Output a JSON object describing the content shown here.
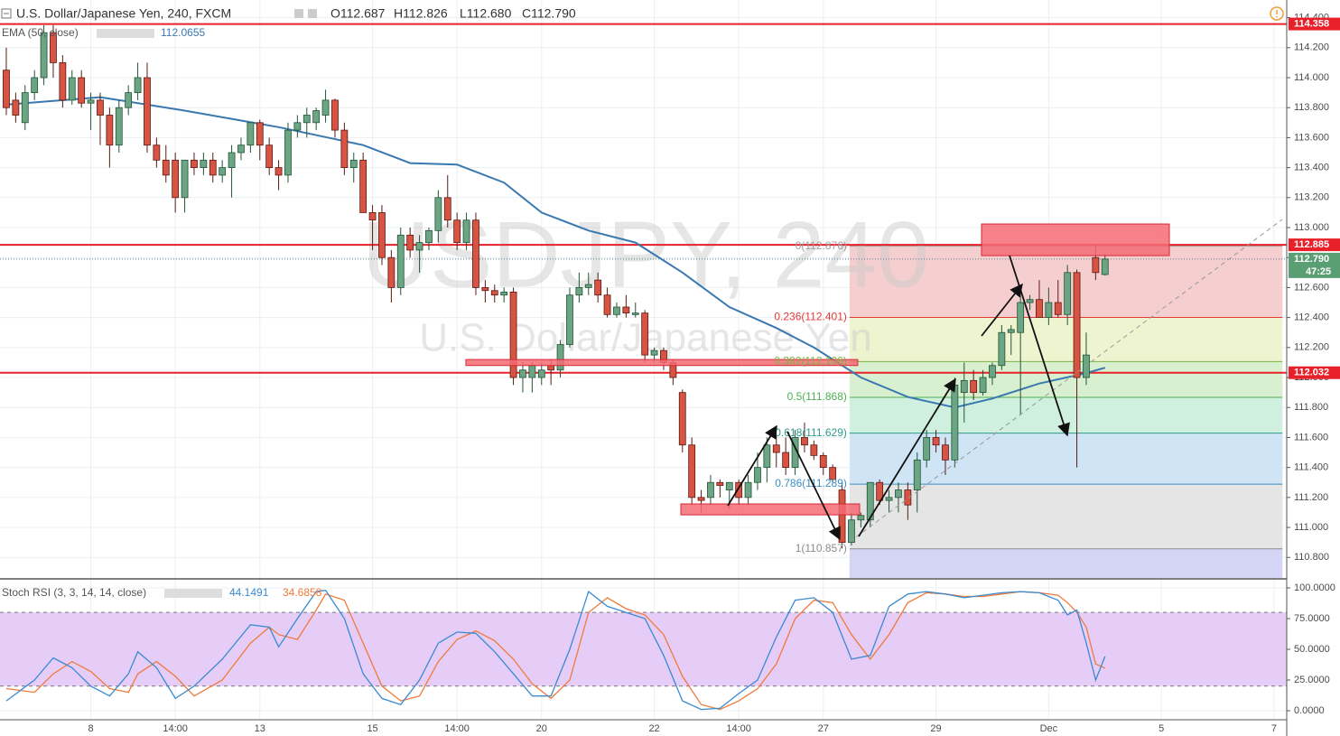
{
  "chart_data": [
    {
      "type": "candlestick",
      "title": "U.S. Dollar/Japanese Yen, 240, FXCM",
      "ohlc_legend": [
        {
          "value": 112.687,
          "label": "O112.687"
        },
        {
          "value": 112.826,
          "label": "H112.826"
        },
        {
          "value": 112.68,
          "label": "L112.680"
        },
        {
          "value": 112.79,
          "label": "C112.790"
        }
      ],
      "watermark": "USDJPY, 240",
      "watermark_subtitle": "U.S. Dollar/Japanese Yen",
      "up_color": "#6ba583",
      "down_color": "#d75442",
      "x": [
        0,
        1,
        2,
        3,
        4,
        5,
        6,
        7,
        8,
        9,
        10,
        11,
        12,
        13,
        14,
        15,
        16,
        17,
        18,
        19,
        20,
        21,
        22,
        23,
        24,
        25,
        26,
        27,
        28,
        29,
        30,
        31,
        32,
        33,
        34,
        35,
        36,
        37,
        38,
        39,
        40,
        41,
        42,
        43,
        44,
        45,
        46,
        47,
        48,
        49,
        50,
        51,
        52,
        53,
        54,
        55,
        56,
        57,
        58,
        59,
        60,
        61,
        62,
        63,
        64,
        65,
        66,
        67,
        68,
        69,
        70,
        71,
        72,
        73,
        74,
        75,
        76,
        77,
        78,
        79,
        80,
        81,
        82,
        83,
        84,
        85,
        86,
        87,
        88,
        89,
        90,
        91,
        92,
        93,
        94,
        95,
        96,
        97,
        98,
        99,
        100,
        101,
        102,
        103,
        104,
        105,
        106,
        107,
        108,
        109,
        110,
        111,
        112,
        113,
        114,
        115,
        116,
        117
      ],
      "open": [
        114.05,
        113.85,
        113.7,
        113.9,
        114.0,
        114.3,
        114.1,
        113.85,
        114.0,
        113.83,
        113.85,
        113.75,
        113.55,
        113.8,
        113.9,
        114.0,
        113.55,
        113.45,
        113.45,
        113.2,
        113.45,
        113.4,
        113.45,
        113.35,
        113.4,
        113.5,
        113.55,
        113.7,
        113.55,
        113.4,
        113.35,
        113.65,
        113.7,
        113.7,
        113.75,
        113.85,
        113.65,
        113.4,
        113.45,
        113.1,
        113.1,
        112.8,
        112.6,
        112.95,
        112.85,
        112.9,
        112.98,
        113.2,
        113.05,
        112.9,
        113.05,
        112.6,
        112.58,
        112.55,
        112.57,
        112.0,
        112.0,
        112.0,
        112.08,
        112.05,
        112.22,
        112.55,
        112.6,
        112.65,
        112.55,
        112.42,
        112.47,
        112.42,
        112.43,
        112.15,
        112.18,
        112.1,
        111.9,
        111.55,
        111.2,
        111.2,
        111.3,
        111.25,
        111.3,
        111.2,
        111.3,
        111.4,
        111.55,
        111.5,
        111.4,
        111.6,
        111.55,
        111.48,
        111.4,
        111.25,
        110.9,
        111.05,
        111.05,
        111.3,
        111.18,
        111.2,
        111.25,
        111.25,
        111.45,
        111.6,
        111.55,
        111.45,
        111.9,
        111.98,
        111.9,
        112.0,
        112.08,
        112.3,
        112.3,
        112.5,
        112.52,
        112.4,
        112.5,
        112.42,
        112.7,
        112.0,
        112.8,
        112.687
      ],
      "high": [
        114.2,
        113.9,
        113.95,
        114.05,
        114.35,
        114.35,
        114.15,
        114.05,
        114.05,
        113.9,
        113.9,
        113.8,
        113.85,
        113.95,
        114.1,
        114.1,
        113.6,
        113.55,
        113.5,
        113.45,
        113.5,
        113.5,
        113.5,
        113.45,
        113.55,
        113.6,
        113.7,
        113.72,
        113.6,
        113.45,
        113.7,
        113.75,
        113.8,
        113.8,
        113.92,
        113.86,
        113.7,
        113.5,
        113.5,
        113.15,
        113.15,
        112.85,
        113.0,
        113.0,
        112.95,
        113.0,
        113.25,
        113.35,
        113.1,
        113.1,
        113.1,
        112.65,
        112.62,
        112.6,
        112.6,
        112.1,
        112.1,
        112.1,
        112.12,
        112.25,
        112.6,
        112.7,
        112.7,
        112.7,
        112.6,
        112.5,
        112.55,
        112.5,
        112.45,
        112.2,
        112.2,
        112.12,
        111.92,
        111.6,
        111.25,
        111.35,
        111.32,
        111.3,
        111.32,
        111.35,
        111.5,
        111.6,
        111.62,
        111.6,
        111.65,
        111.7,
        111.58,
        111.5,
        111.42,
        111.3,
        111.1,
        111.1,
        111.3,
        111.32,
        111.25,
        111.3,
        111.3,
        111.5,
        111.65,
        111.65,
        111.6,
        112.0,
        112.1,
        112.05,
        112.05,
        112.1,
        112.35,
        112.35,
        112.55,
        112.55,
        112.65,
        112.6,
        112.65,
        112.75,
        112.72,
        112.3,
        112.89,
        112.826
      ],
      "low": [
        113.75,
        113.7,
        113.65,
        113.85,
        113.95,
        114.0,
        113.8,
        113.82,
        113.8,
        113.65,
        113.55,
        113.4,
        113.5,
        113.75,
        113.85,
        113.5,
        113.4,
        113.3,
        113.1,
        113.1,
        113.35,
        113.35,
        113.3,
        113.3,
        113.2,
        113.45,
        113.5,
        113.45,
        113.35,
        113.25,
        113.3,
        113.6,
        113.6,
        113.65,
        113.7,
        113.6,
        113.35,
        113.3,
        113.1,
        112.85,
        112.75,
        112.5,
        112.55,
        112.8,
        112.7,
        112.85,
        112.9,
        113.0,
        112.85,
        112.85,
        112.55,
        112.5,
        112.5,
        112.5,
        111.95,
        111.9,
        111.9,
        111.95,
        111.95,
        112.0,
        112.2,
        112.5,
        112.55,
        112.5,
        112.4,
        112.4,
        112.4,
        112.4,
        112.1,
        112.1,
        112.05,
        111.95,
        111.5,
        111.15,
        111.1,
        111.15,
        111.2,
        111.12,
        111.15,
        111.15,
        111.25,
        111.3,
        111.4,
        111.35,
        111.35,
        111.5,
        111.45,
        111.35,
        111.3,
        110.86,
        110.88,
        111.0,
        111.0,
        111.15,
        111.1,
        111.1,
        111.05,
        111.1,
        111.4,
        111.5,
        111.35,
        111.4,
        111.7,
        111.85,
        111.88,
        111.95,
        112.05,
        112.15,
        111.75,
        112.45,
        112.4,
        112.35,
        112.4,
        112.35,
        111.4,
        111.95,
        112.65,
        112.68
      ],
      "close": [
        113.8,
        113.75,
        113.9,
        114.0,
        114.3,
        114.1,
        113.85,
        114.0,
        113.83,
        113.85,
        113.75,
        113.55,
        113.8,
        113.9,
        114.0,
        113.55,
        113.45,
        113.35,
        113.2,
        113.45,
        113.4,
        113.45,
        113.35,
        113.4,
        113.5,
        113.55,
        113.7,
        113.55,
        113.4,
        113.35,
        113.65,
        113.7,
        113.75,
        113.78,
        113.85,
        113.65,
        113.4,
        113.45,
        113.1,
        113.05,
        112.8,
        112.6,
        112.95,
        112.85,
        112.9,
        112.98,
        113.2,
        113.05,
        112.9,
        113.05,
        112.6,
        112.58,
        112.55,
        112.57,
        112.0,
        112.05,
        112.08,
        112.05,
        112.05,
        112.22,
        112.55,
        112.6,
        112.62,
        112.55,
        112.42,
        112.47,
        112.43,
        112.43,
        112.15,
        112.18,
        112.1,
        112.0,
        111.55,
        111.2,
        111.18,
        111.3,
        111.28,
        111.3,
        111.2,
        111.3,
        111.4,
        111.55,
        111.5,
        111.4,
        111.6,
        111.55,
        111.48,
        111.4,
        111.32,
        110.9,
        111.05,
        111.08,
        111.3,
        111.18,
        111.2,
        111.25,
        111.15,
        111.45,
        111.6,
        111.55,
        111.45,
        111.95,
        111.98,
        111.9,
        112.0,
        112.08,
        112.3,
        112.32,
        112.5,
        112.52,
        112.4,
        112.5,
        112.42,
        112.7,
        112.0,
        112.15,
        112.7,
        112.79
      ],
      "ema": {
        "label": "EMA (50, close)",
        "color": "#3a78b0",
        "x": [
          0,
          10,
          19,
          29,
          38,
          43,
          48,
          53,
          57,
          62,
          67,
          72,
          77,
          82,
          86,
          91,
          96,
          101,
          105,
          110,
          115,
          117
        ],
        "values": [
          113.82,
          113.87,
          113.78,
          113.67,
          113.55,
          113.43,
          113.42,
          113.3,
          113.1,
          112.98,
          112.9,
          112.7,
          112.47,
          112.33,
          112.2,
          112.0,
          111.87,
          111.8,
          111.86,
          111.96,
          112.03,
          112.0655
        ]
      },
      "hlines": [
        {
          "value": 114.358,
          "color": "#e8202a"
        },
        {
          "value": 112.885,
          "color": "#e8202a"
        },
        {
          "value": 112.032,
          "color": "#e8202a"
        }
      ],
      "last_price": {
        "value": 112.79,
        "label": "112.790",
        "color": "#5a9f74"
      },
      "countdown": "47:25",
      "fib": {
        "x": [
          89.8,
          135.9
        ],
        "levels": [
          0,
          0.236,
          0.382,
          0.5,
          0.618,
          0.786,
          1
        ],
        "prices": [
          112.876,
          112.401,
          112.106,
          111.868,
          111.629,
          111.289,
          110.857
        ],
        "value_labels": [
          "0(112.876)",
          "0.236(112.401)",
          "0.382(112.106)",
          "0.5(111.868)",
          "0.618(111.629)",
          "0.786(111.289)",
          "1(110.857)"
        ],
        "level_colors": [
          "#9e9e9e",
          "#e53935",
          "#7cb342",
          "#4caf50",
          "#2e9b8a",
          "#3b8fc4",
          "#8c8c8c"
        ],
        "band_colors": [
          "#f5cfcf",
          "#eef4cf",
          "#d8f0cf",
          "#cff0de",
          "#cfe4f4",
          "#e5e5e5",
          "#d4d4f5"
        ]
      },
      "zones": [
        {
          "x": [
            103.85,
            123.85
          ],
          "y": [
            112.813,
            113.024
          ]
        },
        {
          "x": [
            48.94,
            90.67
          ],
          "y": [
            112.08,
            112.12
          ]
        },
        {
          "x": [
            71.83,
            90.87
          ],
          "y": [
            111.084,
            111.157
          ]
        }
      ],
      "zone_color": "#f46b74",
      "xlim": [
        -0.67,
        136.35
      ],
      "xticks": [
        {
          "value": 9,
          "label": "8"
        },
        {
          "value": 18,
          "label": "14:00"
        },
        {
          "value": 27,
          "label": "13"
        },
        {
          "value": 39,
          "label": "15"
        },
        {
          "value": 48,
          "label": "14:00"
        },
        {
          "value": 57,
          "label": "20"
        },
        {
          "value": 69,
          "label": "22"
        },
        {
          "value": 78,
          "label": "14:00"
        },
        {
          "value": 87,
          "label": "27"
        },
        {
          "value": 99,
          "label": "29"
        },
        {
          "value": 111,
          "label": "Dec"
        },
        {
          "value": 123,
          "label": "5"
        },
        {
          "value": 135,
          "label": "7"
        }
      ],
      "ylim": [
        110.663,
        114.518
      ],
      "yticks": [
        {
          "value": 114.4,
          "label": "114.400"
        },
        {
          "value": 114.2,
          "label": "114.200"
        },
        {
          "value": 114,
          "label": "114.000"
        },
        {
          "value": 113.8,
          "label": "113.800"
        },
        {
          "value": 113.6,
          "label": "113.600"
        },
        {
          "value": 113.4,
          "label": "113.400"
        },
        {
          "value": 113.2,
          "label": "113.200"
        },
        {
          "value": 113,
          "label": "113.000"
        },
        {
          "value": 112.8,
          "label": "112.800"
        },
        {
          "value": 112.6,
          "label": "112.600"
        },
        {
          "value": 112.4,
          "label": "112.400"
        },
        {
          "value": 112.2,
          "label": "112.200"
        },
        {
          "value": 112,
          "label": "112.000"
        },
        {
          "value": 111.8,
          "label": "111.800"
        },
        {
          "value": 111.6,
          "label": "111.600"
        },
        {
          "value": 111.4,
          "label": "111.400"
        },
        {
          "value": 111.2,
          "label": "111.200"
        },
        {
          "value": 111,
          "label": "111.000"
        },
        {
          "value": 110.8,
          "label": "110.800"
        }
      ],
      "grid": true
    },
    {
      "type": "line",
      "title": "Stoch RSI (3, 3, 14, 14, close)",
      "x": [
        0,
        3,
        5,
        7,
        9,
        11,
        13,
        14,
        16,
        18,
        20,
        23,
        26,
        28,
        29,
        31,
        33,
        34,
        36,
        38,
        40,
        42,
        44,
        46,
        48,
        50,
        52,
        54,
        56,
        58,
        60,
        62,
        64,
        66,
        68,
        70,
        72,
        74,
        76,
        78,
        80,
        82,
        84,
        86,
        88,
        90,
        92,
        94,
        96,
        98,
        100,
        102,
        104,
        106,
        108,
        110,
        112,
        113,
        114,
        115,
        116,
        117
      ],
      "series": [
        {
          "color": "#3a8ad0",
          "values": [
            8,
            25,
            43,
            35,
            20,
            12,
            30,
            48,
            35,
            10,
            20,
            42,
            70,
            68,
            52,
            75,
            97,
            98,
            75,
            30,
            10,
            5,
            25,
            55,
            64,
            63,
            48,
            30,
            12,
            12,
            50,
            97,
            85,
            80,
            75,
            45,
            8,
            1,
            2,
            14,
            25,
            60,
            90,
            92,
            80,
            42,
            45,
            85,
            95,
            97,
            95,
            92,
            94,
            96,
            97,
            96,
            90,
            78,
            82,
            55,
            25,
            44.1491
          ]
        },
        {
          "color": "#f07a3a",
          "values": [
            18,
            15,
            30,
            40,
            32,
            18,
            15,
            30,
            40,
            28,
            12,
            25,
            55,
            68,
            62,
            58,
            82,
            95,
            90,
            55,
            20,
            8,
            12,
            40,
            58,
            65,
            57,
            42,
            22,
            10,
            25,
            80,
            92,
            83,
            78,
            62,
            28,
            5,
            1,
            8,
            18,
            38,
            75,
            90,
            88,
            62,
            42,
            62,
            88,
            96,
            95,
            93,
            93,
            95,
            97,
            96,
            94,
            88,
            80,
            68,
            38,
            34.6858
          ]
        }
      ],
      "band": [
        20,
        80
      ],
      "band_color": "#e6cdf7",
      "ylim": [
        -7.35,
        106.6
      ],
      "yticks": [
        {
          "value": 100,
          "label": "100.0000"
        },
        {
          "value": 75,
          "label": "75.0000"
        },
        {
          "value": 50,
          "label": "50.0000"
        },
        {
          "value": 25,
          "label": "25.0000"
        },
        {
          "value": 0,
          "label": "0.0000"
        }
      ],
      "grid": true
    }
  ]
}
